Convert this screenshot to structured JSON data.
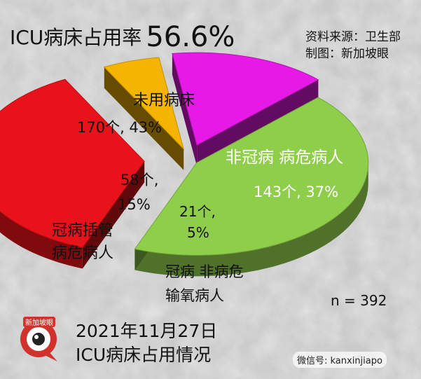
{
  "header": {
    "title": "ICU病床占用率",
    "rate": "56.6%",
    "source": "资料来源：卫生部",
    "producer": "制图：新加坡眼"
  },
  "footer": {
    "date": "2021年11月27日",
    "caption": "ICU病床占用情况",
    "n_label": "n = 392",
    "wechat": "微信号: kanxinjiapo",
    "logo_text": "新加坡眼"
  },
  "colors": {
    "unused": "#8fce4a",
    "noncovid_critical": "#e8131a",
    "covid_oxygen": "#f5b400",
    "covid_intubated": "#e619e6"
  },
  "chart_data": {
    "type": "pie",
    "title": "ICU病床占用率 56.6%",
    "total": 392,
    "slices": [
      {
        "label": "未用病床",
        "count": 170,
        "percent": 43,
        "count_text": "170个,",
        "pct_text": "43%",
        "value_text": "170个, 43%",
        "color": "#8fce4a"
      },
      {
        "label": "非冠病 病危病人",
        "count": 143,
        "percent": 37,
        "count_text": "143个,",
        "pct_text": "37%",
        "value_text": "143个, 37%",
        "color": "#e8131a"
      },
      {
        "label": "冠病 非病危 输氧病人",
        "label_line1": "冠病 非病危",
        "label_line2": "输氧病人",
        "count": 21,
        "percent": 5,
        "count_text": "21个,",
        "pct_text": "5%",
        "color": "#f5b400"
      },
      {
        "label": "冠病插管 病危病人",
        "label_line1": "冠病插管",
        "label_line2": "病危病人",
        "count": 58,
        "percent": 15,
        "count_text": "58个,",
        "pct_text": "15%",
        "color": "#e619e6"
      }
    ]
  }
}
